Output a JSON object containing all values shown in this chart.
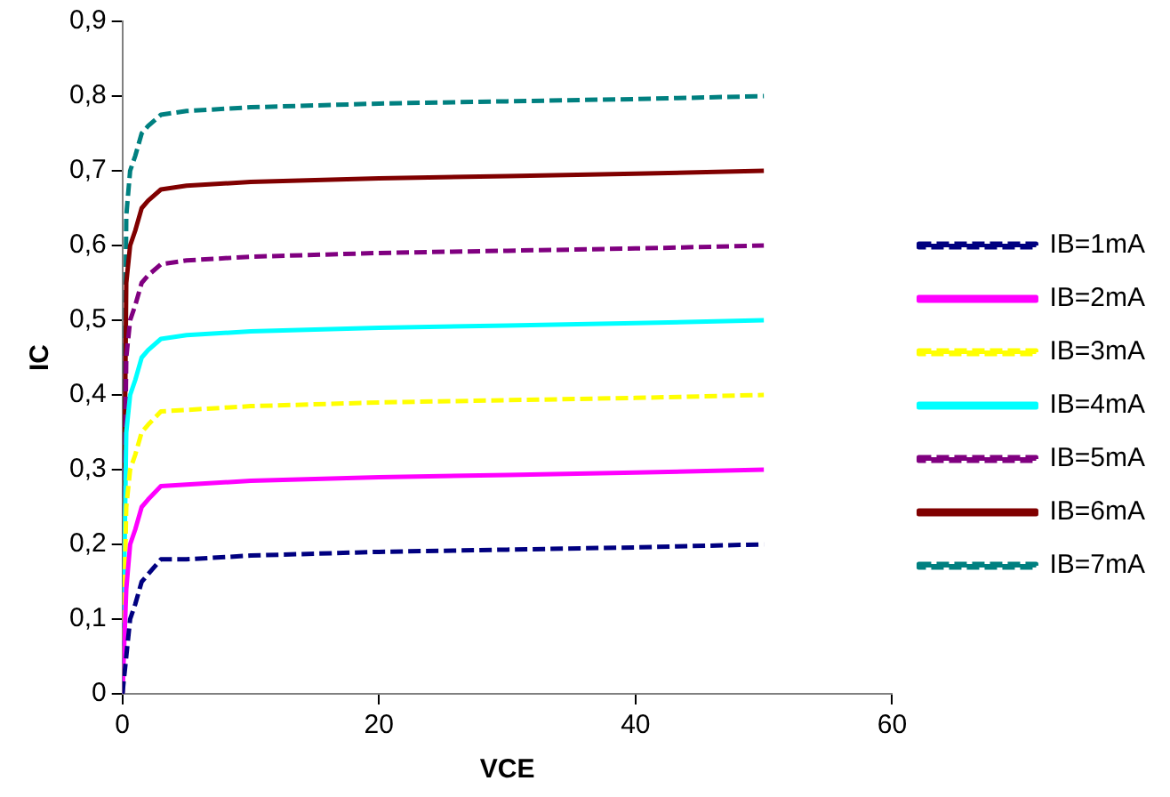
{
  "chart_data": {
    "type": "line",
    "xlabel": "VCE",
    "ylabel": "IC",
    "xlim": [
      0,
      60
    ],
    "xticks": [
      0,
      20,
      40,
      60
    ],
    "ylim": [
      0,
      0.9
    ],
    "yticks": [
      {
        "value": 0,
        "label": "0"
      },
      {
        "value": 0.1,
        "label": "0,1"
      },
      {
        "value": 0.2,
        "label": "0,2"
      },
      {
        "value": 0.3,
        "label": "0,3"
      },
      {
        "value": 0.4,
        "label": "0,4"
      },
      {
        "value": 0.5,
        "label": "0,5"
      },
      {
        "value": 0.6,
        "label": "0,6"
      },
      {
        "value": 0.7,
        "label": "0,7"
      },
      {
        "value": 0.8,
        "label": "0,8"
      },
      {
        "value": 0.9,
        "label": "0,9"
      }
    ],
    "grid": false,
    "legend": "right",
    "marker": "none",
    "x": [
      0,
      0.3,
      0.6,
      1,
      1.5,
      2,
      3,
      5,
      10,
      20,
      30,
      40,
      50
    ],
    "series": [
      {
        "name": "IB=1mA",
        "color": "#000080",
        "line_style": "dashed",
        "values": [
          0,
          0.05,
          0.1,
          0.12,
          0.15,
          0.16,
          0.18,
          0.18,
          0.185,
          0.19,
          0.193,
          0.196,
          0.2
        ]
      },
      {
        "name": "IB=2mA",
        "color": "#ff00ff",
        "line_style": "solid",
        "values": [
          0,
          0.14,
          0.2,
          0.22,
          0.25,
          0.26,
          0.278,
          0.28,
          0.285,
          0.29,
          0.293,
          0.296,
          0.3
        ]
      },
      {
        "name": "IB=3mA",
        "color": "#ffff00",
        "line_style": "dashed",
        "values": [
          0,
          0.25,
          0.3,
          0.32,
          0.35,
          0.36,
          0.378,
          0.38,
          0.385,
          0.39,
          0.393,
          0.396,
          0.4
        ]
      },
      {
        "name": "IB=4mA",
        "color": "#00ffff",
        "line_style": "solid",
        "values": [
          0,
          0.35,
          0.4,
          0.42,
          0.45,
          0.46,
          0.475,
          0.48,
          0.485,
          0.49,
          0.493,
          0.496,
          0.5
        ]
      },
      {
        "name": "IB=5mA",
        "color": "#800080",
        "line_style": "dashed",
        "values": [
          0,
          0.45,
          0.5,
          0.52,
          0.55,
          0.56,
          0.575,
          0.58,
          0.585,
          0.59,
          0.593,
          0.596,
          0.6
        ]
      },
      {
        "name": "IB=6mA",
        "color": "#800000",
        "line_style": "solid",
        "values": [
          0,
          0.55,
          0.6,
          0.62,
          0.65,
          0.66,
          0.675,
          0.68,
          0.685,
          0.69,
          0.693,
          0.696,
          0.7
        ]
      },
      {
        "name": "IB=7mA",
        "color": "#008080",
        "line_style": "dashed",
        "values": [
          0,
          0.64,
          0.7,
          0.72,
          0.75,
          0.76,
          0.775,
          0.78,
          0.785,
          0.79,
          0.793,
          0.796,
          0.8
        ]
      }
    ]
  }
}
